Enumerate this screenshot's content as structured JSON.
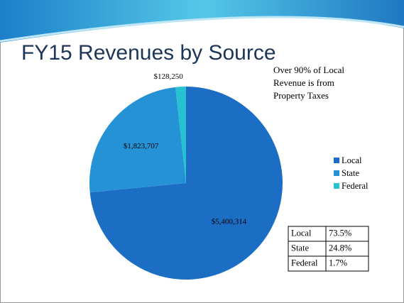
{
  "title": "FY15 Revenues by Source",
  "chart_data": {
    "type": "pie",
    "categories": [
      "Local",
      "State",
      "Federal"
    ],
    "values": [
      5400314,
      1823707,
      128250
    ],
    "value_labels": [
      "$5,400,314",
      "$1,823,707",
      "$128,250"
    ],
    "colors": [
      "#1c6ec4",
      "#2592d6",
      "#26c2d2"
    ],
    "legend": "right",
    "annotation": "Over 90% of Local Revenue is from Property Taxes"
  },
  "table": {
    "rows": [
      [
        "Local",
        "73.5%"
      ],
      [
        "State",
        "24.8%"
      ],
      [
        "Federal",
        "1.7%"
      ]
    ]
  }
}
